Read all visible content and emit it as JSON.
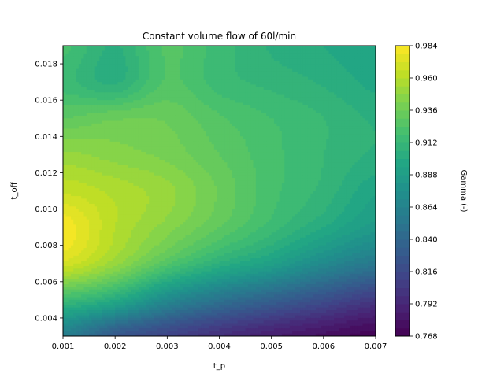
{
  "chart_data": {
    "type": "heatmap",
    "subtype": "filled-contour",
    "title": "Constant volume flow of 60l/min",
    "xlabel": "t_p",
    "ylabel": "t_off",
    "xlim": [
      0.001,
      0.007
    ],
    "ylim": [
      0.003,
      0.019
    ],
    "x_ticks": [
      "0.001",
      "0.002",
      "0.003",
      "0.004",
      "0.005",
      "0.006",
      "0.007"
    ],
    "y_ticks": [
      "0.004",
      "0.006",
      "0.008",
      "0.010",
      "0.012",
      "0.014",
      "0.016",
      "0.018"
    ],
    "colorbar": {
      "label": "Gamma (-)",
      "range": [
        0.768,
        0.984
      ],
      "ticks": [
        "0.768",
        "0.792",
        "0.816",
        "0.840",
        "0.864",
        "0.888",
        "0.912",
        "0.936",
        "0.960",
        "0.984"
      ]
    },
    "colormap": "viridis",
    "grid": false,
    "x": [
      0.001,
      0.002,
      0.003,
      0.004,
      0.005,
      0.006,
      0.007
    ],
    "y": [
      0.003,
      0.005,
      0.007,
      0.009,
      0.011,
      0.013,
      0.015,
      0.017,
      0.019
    ],
    "z": [
      [
        0.86,
        0.828,
        0.812,
        0.798,
        0.787,
        0.778,
        0.77
      ],
      [
        0.915,
        0.9,
        0.87,
        0.85,
        0.835,
        0.82,
        0.805
      ],
      [
        0.97,
        0.95,
        0.925,
        0.905,
        0.89,
        0.87,
        0.855
      ],
      [
        0.982,
        0.96,
        0.945,
        0.93,
        0.915,
        0.9,
        0.885
      ],
      [
        0.965,
        0.958,
        0.95,
        0.935,
        0.92,
        0.91,
        0.895
      ],
      [
        0.95,
        0.945,
        0.94,
        0.93,
        0.92,
        0.912,
        0.905
      ],
      [
        0.93,
        0.935,
        0.935,
        0.925,
        0.918,
        0.912,
        0.905
      ],
      [
        0.915,
        0.905,
        0.925,
        0.915,
        0.91,
        0.905,
        0.898
      ],
      [
        0.92,
        0.905,
        0.925,
        0.915,
        0.905,
        0.9,
        0.895
      ]
    ]
  }
}
